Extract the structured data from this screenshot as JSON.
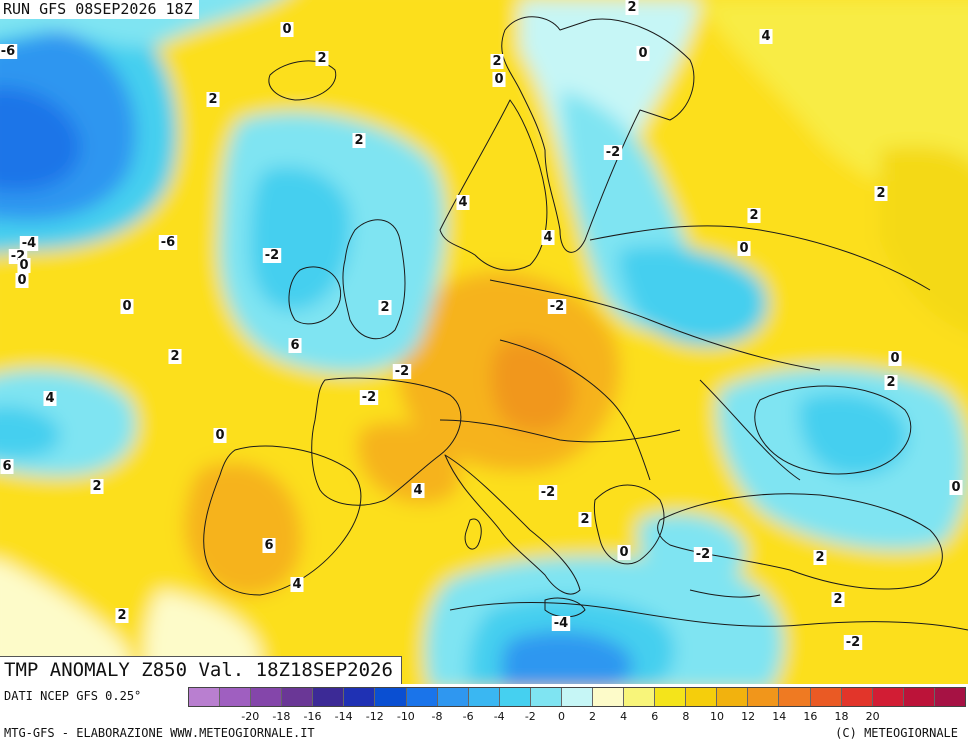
{
  "run_label": "RUN GFS 08SEP2026 18Z",
  "title": "TMP ANOMALY Z850 Val. 18Z18SEP2026",
  "source_label": "DATI NCEP GFS 0.25°",
  "credit_left": "MTG-GFS - ELABORAZIONE WWW.METEOGIORNALE.IT",
  "credit_right": "(C) METEOGIORNALE",
  "legend": {
    "colors": [
      "#b97fd0",
      "#9f5fc0",
      "#8446aa",
      "#6a3796",
      "#3c2a96",
      "#1f31b4",
      "#0a4fd2",
      "#1a74ea",
      "#2f97f0",
      "#3ab7f2",
      "#45d0f0",
      "#7fe4f2",
      "#c6f6f6",
      "#fdfbc9",
      "#f8f57a",
      "#f4e41b",
      "#f5ce0c",
      "#f2b20e",
      "#f1961b",
      "#ef7a22",
      "#ea5a24",
      "#e2352a",
      "#d21d34",
      "#bc1339",
      "#a61244"
    ],
    "ticks": [
      "-20",
      "-18",
      "-16",
      "-14",
      "-12",
      "-10",
      "-8",
      "-6",
      "-4",
      "-2",
      "0",
      "2",
      "4",
      "6",
      "8",
      "10",
      "12",
      "14",
      "16",
      "18",
      "20"
    ]
  },
  "map_labels": [
    "2",
    "4",
    "0",
    "-6",
    "2",
    "0",
    "2",
    "0",
    "-2",
    "2",
    "2",
    "4",
    "-6",
    "-4",
    "-2",
    "0",
    "0",
    "4",
    "2",
    "2",
    "0",
    "-2",
    "2",
    "0",
    "-2",
    "6",
    "2",
    "0",
    "2",
    "-2",
    "4",
    "-2",
    "0",
    "6",
    "2",
    "4",
    "-2",
    "0",
    "2",
    "-2",
    "0",
    "2",
    "6",
    "4",
    "2",
    "2",
    "-4",
    "-2"
  ]
}
